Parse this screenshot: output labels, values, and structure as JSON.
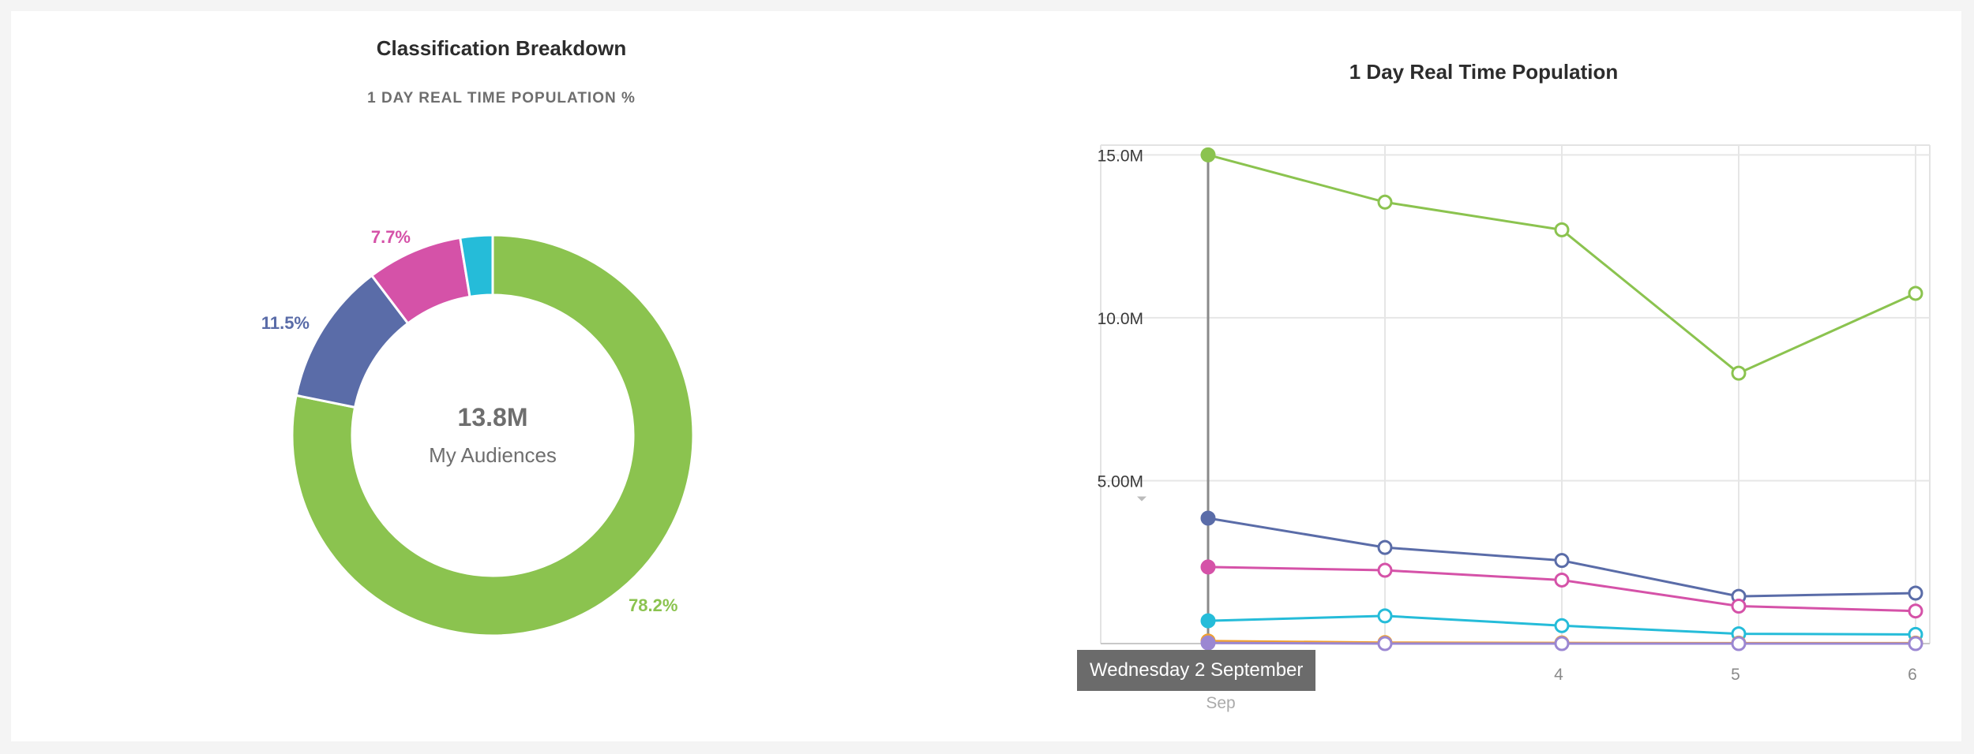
{
  "left_panel": {
    "title": "Classification Breakdown",
    "subtitle": "1 DAY REAL TIME POPULATION %",
    "center_value": "13.8M",
    "center_label": "My Audiences"
  },
  "right_panel": {
    "title": "1 Day Real Time Population",
    "tooltip": "Wednesday 2 September"
  },
  "chart_data": [
    {
      "type": "pie",
      "variant": "donut",
      "title": "Classification Breakdown",
      "subtitle": "1 DAY REAL TIME POPULATION %",
      "center_value": "13.8M",
      "center_label": "My Audiences",
      "slices": [
        {
          "value": 78.2,
          "label": "78.2%",
          "color": "#8bc34f"
        },
        {
          "value": 11.5,
          "label": "11.5%",
          "color": "#5a6ca8"
        },
        {
          "value": 7.7,
          "label": "7.7%",
          "color": "#d552a8"
        },
        {
          "value": 2.6,
          "label": "",
          "color": "#25bcd9"
        }
      ]
    },
    {
      "type": "line",
      "title": "1 Day Real Time Population",
      "x": [
        2,
        3,
        4,
        5,
        6
      ],
      "x_tick_labels": [
        "",
        "",
        "4",
        "5",
        "6"
      ],
      "x_sublabel": "Sep",
      "y_ticks": [
        5000000,
        10000000,
        15000000
      ],
      "y_tick_labels": [
        "5.00M",
        "10.0M",
        "15.0M"
      ],
      "ylim": [
        0,
        15300000
      ],
      "grid": true,
      "highlight_x": 2,
      "tooltip": "Wednesday 2 September",
      "series": [
        {
          "color": "#8bc34f",
          "values": [
            15000000,
            13550000,
            12700000,
            8300000,
            10750000
          ]
        },
        {
          "color": "#5a6ca8",
          "values": [
            3850000,
            2950000,
            2550000,
            1450000,
            1550000
          ]
        },
        {
          "color": "#d552a8",
          "values": [
            2350000,
            2250000,
            1950000,
            1150000,
            1000000
          ]
        },
        {
          "color": "#25bcd9",
          "values": [
            700000,
            850000,
            550000,
            300000,
            280000
          ]
        },
        {
          "color": "#f0a030",
          "values": [
            80000,
            30000,
            20000,
            15000,
            15000
          ]
        },
        {
          "color": "#9b87d2",
          "values": [
            20000,
            0,
            0,
            0,
            0
          ]
        }
      ]
    }
  ]
}
